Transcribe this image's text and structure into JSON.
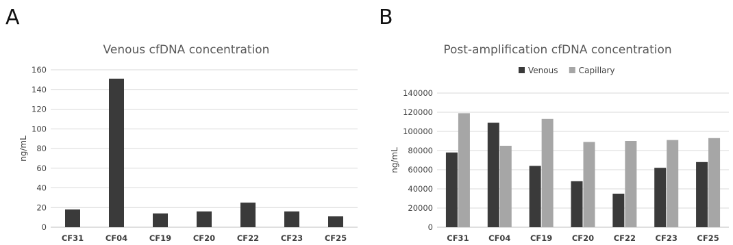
{
  "panels": {
    "a": "A",
    "b": "B"
  },
  "colors": {
    "venous": "#3a3a3a",
    "capillary": "#a6a6a6",
    "grid": "#d9d9d9",
    "text": "#404040",
    "title": "#595959"
  },
  "chart_data": [
    {
      "type": "bar",
      "title": "Venous cfDNA concentration",
      "xlabel": "",
      "ylabel": "ng/mL",
      "ylim": [
        0,
        160
      ],
      "yticks": [
        "0",
        "20",
        "40",
        "60",
        "80",
        "100",
        "120",
        "140",
        "160"
      ],
      "grid": true,
      "legend": "none",
      "categories": [
        "CF31",
        "CF04",
        "CF19",
        "CF20",
        "CF22",
        "CF23",
        "CF25"
      ],
      "series": [
        {
          "values": [
            18,
            151,
            14,
            16,
            25,
            16,
            11
          ]
        }
      ]
    },
    {
      "type": "bar",
      "title": "Post-amplification cfDNA concentration",
      "xlabel": "",
      "ylabel": "ng/mL",
      "ylim": [
        0,
        140000
      ],
      "yticks": [
        "0",
        "20000",
        "40000",
        "60000",
        "80000",
        "100000",
        "120000",
        "140000"
      ],
      "grid": true,
      "legend": "top-center",
      "categories": [
        "CF31",
        "CF04",
        "CF19",
        "CF20",
        "CF22",
        "CF23",
        "CF25"
      ],
      "series": [
        {
          "name": "Venous",
          "values": [
            78000,
            109000,
            64000,
            48000,
            35000,
            62000,
            68000
          ]
        },
        {
          "name": "Capillary",
          "values": [
            119000,
            85000,
            113000,
            89000,
            90000,
            91000,
            93000
          ]
        }
      ]
    }
  ]
}
